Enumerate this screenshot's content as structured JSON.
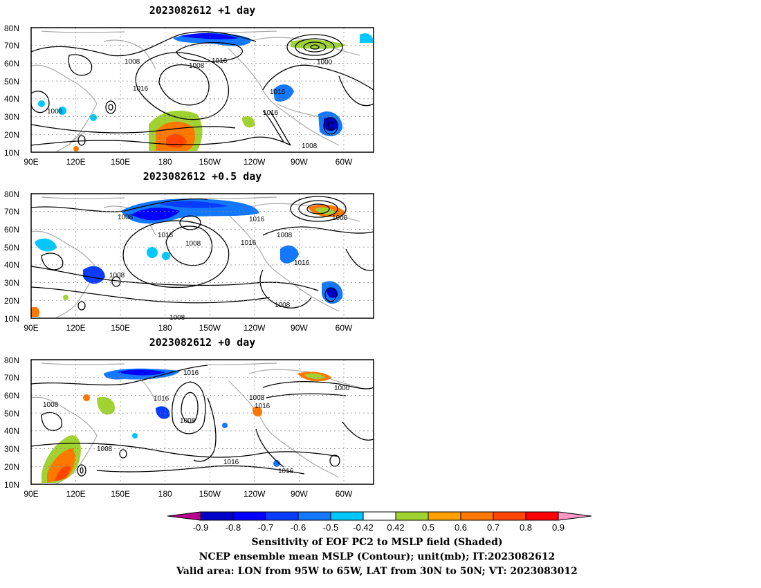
{
  "panels": [
    {
      "title": "2023082612  +1 day",
      "contour_labels": [
        "1008",
        "1008",
        "1016",
        "1008",
        "1016",
        "1000",
        "1016",
        "1016",
        "1008"
      ],
      "lon_labels": [
        "90E",
        "120E",
        "150E",
        "180",
        "150W",
        "120W",
        "90W",
        "60W"
      ],
      "lat_labels": [
        "80N",
        "70N",
        "60N",
        "50N",
        "40N",
        "30N",
        "20N",
        "10N"
      ]
    },
    {
      "title": "2023082612  +0.5 day",
      "contour_labels": [
        "1008",
        "1016",
        "1008",
        "1016",
        "1016",
        "1000",
        "1008",
        "1008",
        "1016",
        "1008",
        "1008"
      ],
      "lon_labels": [
        "90E",
        "120E",
        "150E",
        "180",
        "150W",
        "120W",
        "90W",
        "60W"
      ],
      "lat_labels": [
        "80N",
        "70N",
        "60N",
        "50N",
        "40N",
        "30N",
        "20N",
        "10N"
      ]
    },
    {
      "title": "2023082612  +0 day",
      "contour_labels": [
        "1016",
        "1008",
        "1016",
        "1008",
        "1008",
        "1016",
        "1000",
        "1008",
        "1016",
        "1016"
      ],
      "lon_labels": [
        "90E",
        "120E",
        "150E",
        "180",
        "150W",
        "120W",
        "90W",
        "60W"
      ],
      "lat_labels": [
        "80N",
        "70N",
        "60N",
        "50N",
        "40N",
        "30N",
        "20N",
        "10N"
      ]
    }
  ],
  "colorbar": {
    "labels": [
      "-0.9",
      "-0.8",
      "-0.7",
      "-0.6",
      "-0.5",
      "-0.42",
      "0.42",
      "0.5",
      "0.6",
      "0.7",
      "0.8",
      "0.9"
    ],
    "colors": [
      "#b7008f",
      "#0000c8",
      "#0000ff",
      "#0a3cff",
      "#1478ff",
      "#00c8ff",
      "#ffffff",
      "#a0d232",
      "#ffa000",
      "#ff7800",
      "#ff4600",
      "#ff0000",
      "#ff96c8"
    ]
  },
  "caption": {
    "line1": "Sensitivity of EOF PC2 to MSLP field (Shaded)",
    "line2": "NCEP ensemble mean MSLP (Contour); unit(mb); IT:2023082612",
    "line3": "Valid area: LON from 95W to 65W, LAT from 30N to 50N; VT: 2023083012"
  }
}
